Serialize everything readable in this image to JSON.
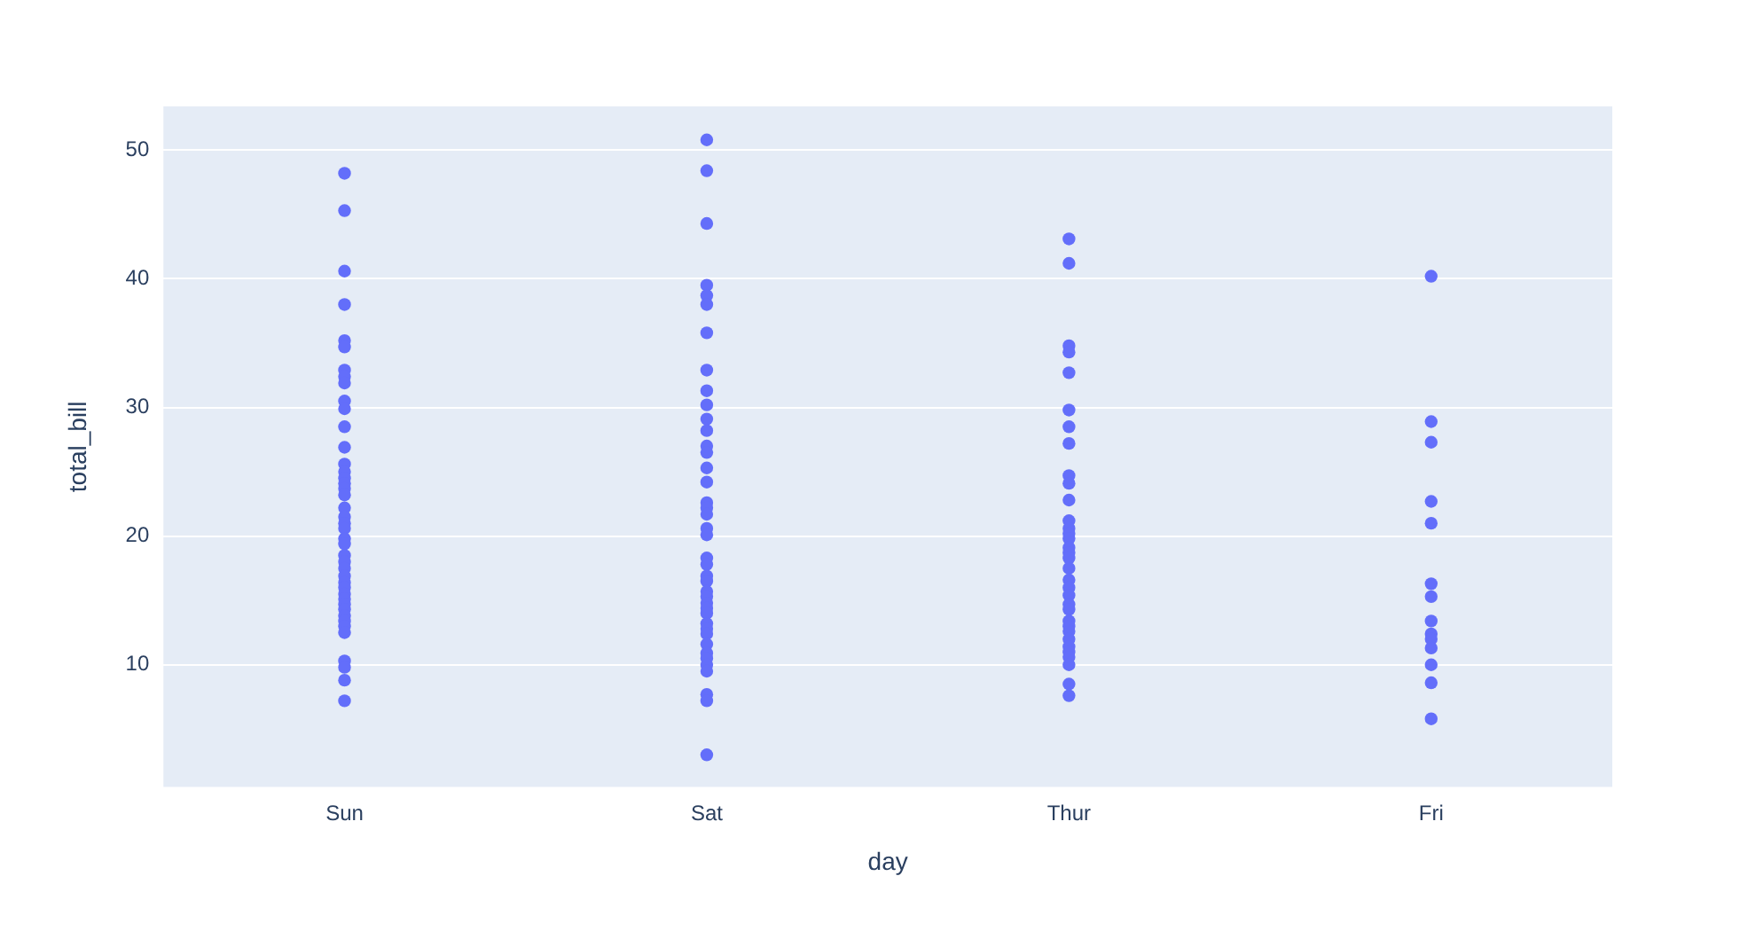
{
  "chart_data": {
    "type": "scatter",
    "xlabel": "day",
    "ylabel": "total_bill",
    "categories": [
      "Sun",
      "Sat",
      "Thur",
      "Fri"
    ],
    "ylim": [
      0.5,
      53.4
    ],
    "yticks": [
      10,
      20,
      30,
      40,
      50
    ],
    "grid": "y",
    "marker": "circle",
    "series": [
      {
        "color": "#636efa",
        "x": [
          "Sun",
          "Sun",
          "Sun",
          "Sun",
          "Sun",
          "Sun",
          "Sun",
          "Sun",
          "Sun",
          "Sun",
          "Sun",
          "Sun",
          "Sun",
          "Sun",
          "Sun",
          "Sun",
          "Sun",
          "Sun",
          "Sun",
          "Sun",
          "Sun",
          "Sun",
          "Sun",
          "Sun",
          "Sun",
          "Sun",
          "Sun",
          "Sun",
          "Sun",
          "Sun",
          "Sun",
          "Sun",
          "Sun",
          "Sun",
          "Sun",
          "Sun",
          "Sun",
          "Sun",
          "Sun",
          "Sun",
          "Sun",
          "Sun",
          "Sun",
          "Sat",
          "Sat",
          "Sat",
          "Sat",
          "Sat",
          "Sat",
          "Sat",
          "Sat",
          "Sat",
          "Sat",
          "Sat",
          "Sat",
          "Sat",
          "Sat",
          "Sat",
          "Sat",
          "Sat",
          "Sat",
          "Sat",
          "Sat",
          "Sat",
          "Sat",
          "Sat",
          "Sat",
          "Sat",
          "Sat",
          "Sat",
          "Sat",
          "Sat",
          "Sat",
          "Sat",
          "Sat",
          "Sat",
          "Sat",
          "Sat",
          "Sat",
          "Sat",
          "Sat",
          "Sat",
          "Sat",
          "Sat",
          "Thur",
          "Thur",
          "Thur",
          "Thur",
          "Thur",
          "Thur",
          "Thur",
          "Thur",
          "Thur",
          "Thur",
          "Thur",
          "Thur",
          "Thur",
          "Thur",
          "Thur",
          "Thur",
          "Thur",
          "Thur",
          "Thur",
          "Thur",
          "Thur",
          "Thur",
          "Thur",
          "Thur",
          "Thur",
          "Thur",
          "Thur",
          "Thur",
          "Thur",
          "Thur",
          "Thur",
          "Thur",
          "Thur",
          "Thur",
          "Fri",
          "Fri",
          "Fri",
          "Fri",
          "Fri",
          "Fri",
          "Fri",
          "Fri",
          "Fri",
          "Fri",
          "Fri",
          "Fri",
          "Fri",
          "Fri"
        ],
        "values": [
          48.2,
          45.3,
          40.6,
          38.0,
          35.2,
          34.7,
          32.9,
          32.4,
          31.9,
          30.5,
          29.9,
          28.5,
          26.9,
          25.6,
          25.0,
          24.5,
          24.1,
          23.7,
          23.2,
          22.2,
          21.5,
          21.0,
          20.6,
          19.8,
          19.4,
          18.5,
          18.0,
          17.5,
          16.9,
          16.4,
          16.0,
          15.5,
          15.1,
          14.7,
          14.3,
          13.8,
          13.4,
          13.0,
          12.5,
          10.3,
          9.8,
          8.8,
          7.2,
          50.8,
          48.4,
          44.3,
          39.5,
          38.7,
          38.0,
          35.8,
          32.9,
          31.3,
          30.2,
          29.1,
          28.2,
          27.0,
          26.5,
          25.3,
          24.2,
          22.6,
          22.2,
          21.7,
          20.6,
          20.1,
          18.3,
          17.8,
          16.9,
          16.5,
          15.7,
          15.3,
          14.8,
          14.4,
          14.0,
          13.2,
          12.8,
          12.4,
          11.6,
          10.9,
          10.5,
          10.0,
          9.5,
          7.7,
          7.2,
          3.0,
          43.1,
          41.2,
          34.8,
          34.3,
          32.7,
          29.8,
          28.5,
          27.2,
          24.7,
          24.1,
          22.8,
          21.2,
          20.6,
          20.2,
          19.8,
          19.1,
          18.7,
          18.3,
          17.5,
          16.6,
          16.0,
          15.4,
          14.7,
          14.3,
          13.4,
          13.0,
          12.6,
          12.0,
          11.4,
          11.0,
          10.6,
          10.0,
          8.5,
          7.6,
          40.2,
          28.9,
          27.3,
          22.7,
          21.0,
          16.3,
          15.3,
          13.4,
          12.4,
          12.0,
          11.3,
          10.0,
          8.6,
          5.8
        ]
      }
    ]
  }
}
